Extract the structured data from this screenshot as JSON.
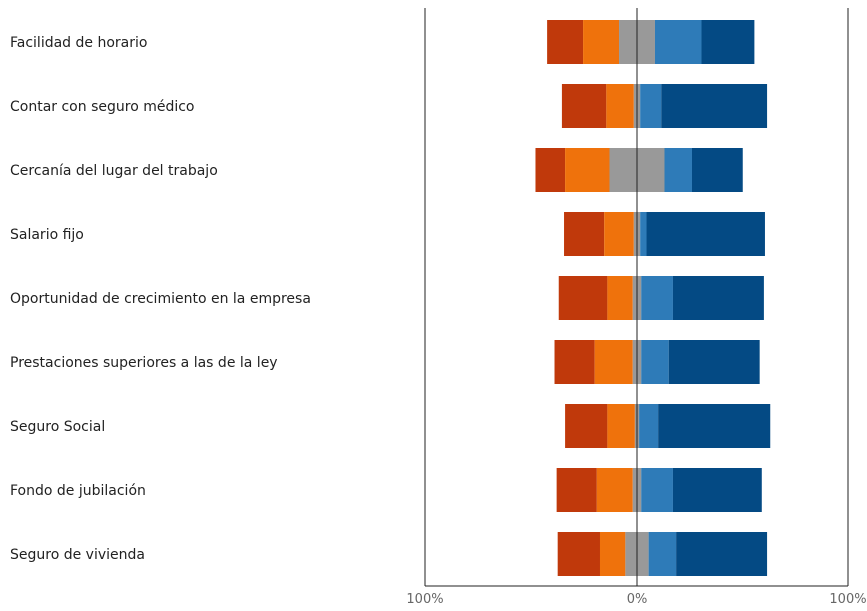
{
  "chart_data": {
    "type": "bar",
    "subtype": "diverging-stacked",
    "orientation": "horizontal",
    "title": "",
    "xlabel": "",
    "ylabel": "",
    "xlim": [
      -100,
      100
    ],
    "x_tick_labels": [
      "100%",
      "0%",
      "100%"
    ],
    "legend": "none",
    "grid": false,
    "categories": [
      "Facilidad de horario",
      "Contar con seguro médico",
      "Cercanía del lugar del trabajo",
      "Salario fijo",
      "Oportunidad de crecimiento en la empresa",
      "Prestaciones superiores a las de la ley",
      "Seguro Social",
      "Fondo de jubilación",
      "Seguro de vivienda"
    ],
    "series": [
      {
        "side": "negative",
        "color": "#c0390b",
        "values": [
          17,
          21,
          14,
          19,
          23,
          19,
          20,
          19,
          20
        ]
      },
      {
        "side": "negative",
        "color": "#ef720c",
        "values": [
          17,
          13,
          21,
          14,
          12,
          18,
          13,
          17,
          12
        ]
      },
      {
        "side": "neutral",
        "color": "#999999",
        "values": [
          17,
          3,
          26,
          3,
          4,
          4,
          2,
          4,
          11
        ]
      },
      {
        "side": "positive",
        "color": "#2e7bb8",
        "values": [
          22,
          10,
          13,
          3,
          15,
          13,
          9,
          15,
          13
        ]
      },
      {
        "side": "positive",
        "color": "#044a84",
        "values": [
          25,
          50,
          24,
          56,
          43,
          43,
          53,
          42,
          43
        ]
      }
    ]
  }
}
